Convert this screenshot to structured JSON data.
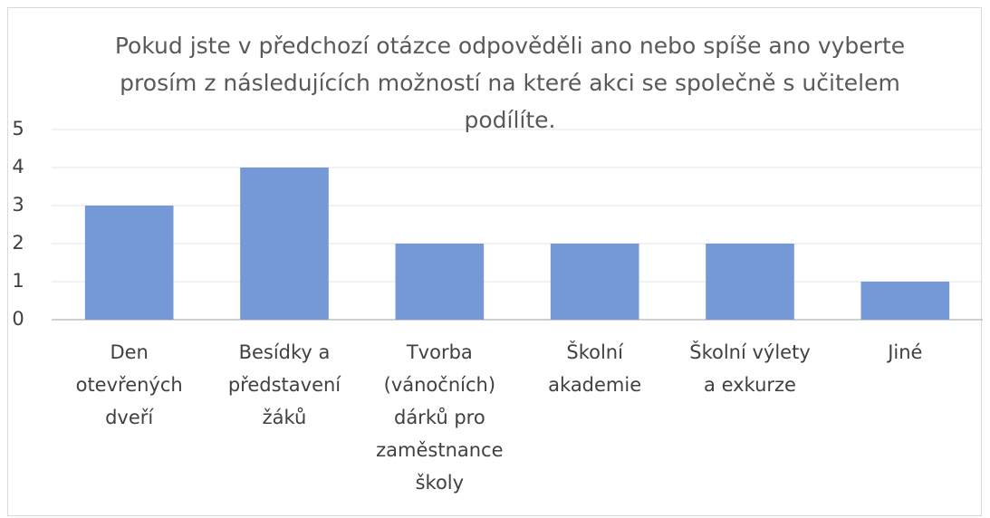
{
  "chart_data": {
    "type": "bar",
    "title": "Pokud jste v předchozí otázce odpověděli ano nebo spíše ano vyberte prosím z následujících možností na které akci se společně s učitelem podílíte.",
    "categories": [
      "Den otevřených dveří",
      "Besídky a představení žáků",
      "Tvorba (vánočních) dárků pro zaměstnance školy",
      "Školní akademie",
      "Školní výlety a exkurze",
      "Jiné"
    ],
    "values": [
      3,
      4,
      2,
      2,
      2,
      1
    ],
    "color": "#7499d6",
    "ylim": [
      0,
      5
    ],
    "yticks": [
      0,
      1,
      2,
      3,
      4,
      5
    ],
    "grid": true
  }
}
